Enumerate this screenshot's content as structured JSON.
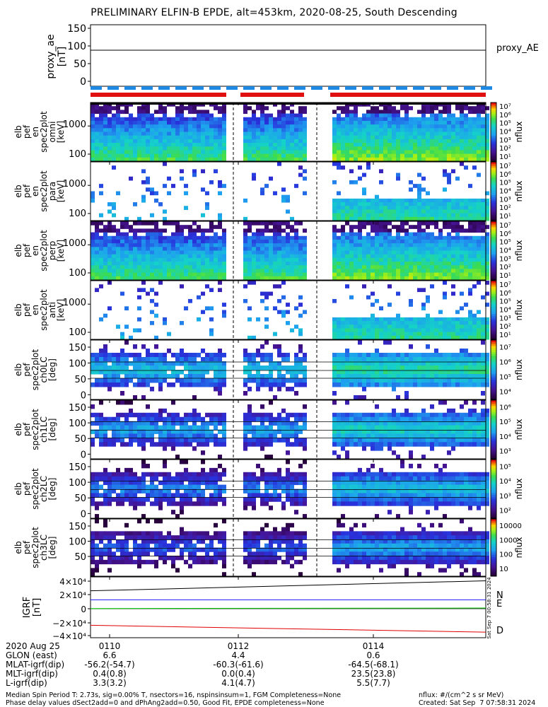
{
  "title": "PRELIMINARY ELFIN-B EPDE, alt=453km, 2020-08-25, South Descending",
  "colors": {
    "bg_dark": "#2a0030",
    "blue_band": "#1e88e5",
    "red_band": "#e01010",
    "N": "#1a1aff",
    "E": "#00cc00",
    "D": "#e00000"
  },
  "panels": {
    "proxy": {
      "ylabel": [
        "proxy_ae",
        "[nT]"
      ],
      "ticks": [
        "150",
        "100",
        "50",
        "0"
      ],
      "right_label": "proxy_AE"
    },
    "spec": [
      {
        "ylabel": [
          "elb",
          "pef",
          "en",
          "spec2plot",
          "omni",
          "[keV]"
        ],
        "ticks": [
          "1000",
          "100"
        ],
        "cb_ticks": [
          "10⁷",
          "10⁶",
          "10⁵",
          "10⁴",
          "10³",
          "10²",
          "10¹"
        ],
        "cb_label": "nflux"
      },
      {
        "ylabel": [
          "elb",
          "pef",
          "en",
          "spec2plot",
          "para",
          "[keV]"
        ],
        "ticks": [
          "1000",
          "100"
        ],
        "cb_ticks": [
          "10⁷",
          "10⁶",
          "10⁵",
          "10⁴",
          "10³",
          "10²",
          "10¹"
        ],
        "cb_label": "nflux"
      },
      {
        "ylabel": [
          "elb",
          "pef",
          "en",
          "spec2plot",
          "perp",
          "[keV]"
        ],
        "ticks": [
          "1000",
          "100"
        ],
        "cb_ticks": [
          "10⁷",
          "10⁶",
          "10⁵",
          "10⁴",
          "10³",
          "10²",
          "10¹"
        ],
        "cb_label": "nflux"
      },
      {
        "ylabel": [
          "elb",
          "pef",
          "en",
          "spec2plot",
          "anti",
          "[keV]"
        ],
        "ticks": [
          "1000",
          "100"
        ],
        "cb_ticks": [
          "10⁷",
          "10⁶",
          "10⁵",
          "10⁴",
          "10³",
          "10²",
          "10¹"
        ],
        "cb_label": "nflux"
      }
    ],
    "pa": [
      {
        "ylabel": [
          "elb",
          "pef",
          "spec2plot",
          "ch0LC",
          "[deg]"
        ],
        "ticks": [
          "150",
          "100",
          "50",
          "0"
        ],
        "cb_ticks": [
          "10⁷",
          "10⁶",
          "10⁵",
          "10⁴"
        ],
        "cb_label": "nflux"
      },
      {
        "ylabel": [
          "elb",
          "pef",
          "spec2plot",
          "ch1LC",
          "[deg]"
        ],
        "ticks": [
          "150",
          "100",
          "50",
          "0"
        ],
        "cb_ticks": [
          "10⁶",
          "10⁵",
          "10⁴",
          "10³"
        ],
        "cb_label": "nflux"
      },
      {
        "ylabel": [
          "elb",
          "pef",
          "spec2plot",
          "ch2LC",
          "[deg]"
        ],
        "ticks": [
          "150",
          "100",
          "50",
          "0"
        ],
        "cb_ticks": [
          "10⁵",
          "10⁴",
          "10³",
          "10²"
        ],
        "cb_label": "nflux"
      },
      {
        "ylabel": [
          "elb",
          "pef",
          "spec2plot",
          "ch3LC",
          "[deg]"
        ],
        "ticks": [
          "150",
          "100",
          "50"
        ],
        "cb_ticks": [
          "10000",
          "1000",
          "100",
          "10"
        ],
        "cb_label": "nflux"
      }
    ],
    "bfield": {
      "ylabel": [
        "IGRF",
        "[nT]"
      ],
      "ticks": [
        "4×10⁴",
        "2×10⁴",
        "0",
        "−2×10⁴",
        "−4×10⁴"
      ],
      "legend": [
        "N",
        "E",
        "D"
      ],
      "stamp": "Sat Sep 7 00:58:31 2024"
    }
  },
  "info": {
    "labels": [
      "2020 Aug 25",
      "GLON (east)",
      "MLAT-igrf(dip)",
      "MLT-igrf(dip)",
      "L-igrf(dip)"
    ],
    "columns": [
      [
        "0110",
        "6.6",
        "-56.2(-54.7)",
        "0.4(0.8)",
        "3.3(3.2)"
      ],
      [
        "0112",
        "4.4",
        "-60.3(-61.6)",
        "0.0(0.4)",
        "4.1(4.7)"
      ],
      [
        "0114",
        "0.6",
        "-64.5(-68.1)",
        "23.5(23.8)",
        "5.5(7.7)"
      ]
    ]
  },
  "footer": {
    "line1": "Median Spin Period T: 2.73s, sig=0.00% T, nsectors=16, nspinsinsum=1, FGM Completeness=None",
    "line2": "Phase delay values dSect2add=0 and dPhAng2add=0.50, Good Fit, EPDE completeness=None",
    "units": "nflux: #/(cm^2 s sr MeV)",
    "created": "Created: Sat Sep  7 07:58:31 2024"
  },
  "chart_data": {
    "type": "heatmap",
    "title": "PRELIMINARY ELFIN-B EPDE, alt=453km, 2020-08-25, South Descending",
    "x_tick_labels": [
      "0110",
      "0112",
      "0114"
    ],
    "panels": [
      {
        "name": "proxy_ae",
        "type": "line",
        "ylim": [
          0,
          150
        ],
        "values": [
          88,
          88,
          88
        ]
      },
      {
        "name": "energy spectra (omni, para, perp, anti)",
        "type": "heatmap",
        "ylabel": "[keV]",
        "ytick_labels": [
          "1000",
          "100"
        ],
        "colorbar": "nflux"
      },
      {
        "name": "pitch-angle spectra ch0LC-ch3LC",
        "type": "heatmap",
        "ylabel": "[deg]",
        "ylim": [
          0,
          180
        ],
        "colorbar": "nflux"
      },
      {
        "name": "IGRF",
        "type": "line",
        "ylim": [
          -40000,
          40000
        ],
        "series": [
          {
            "name": "N",
            "values": [
              22000,
              40000
            ]
          },
          {
            "name": "E",
            "values": [
              300,
              1000
            ]
          },
          {
            "name": "D",
            "values": [
              -24000,
              -34000
            ]
          }
        ]
      }
    ]
  }
}
